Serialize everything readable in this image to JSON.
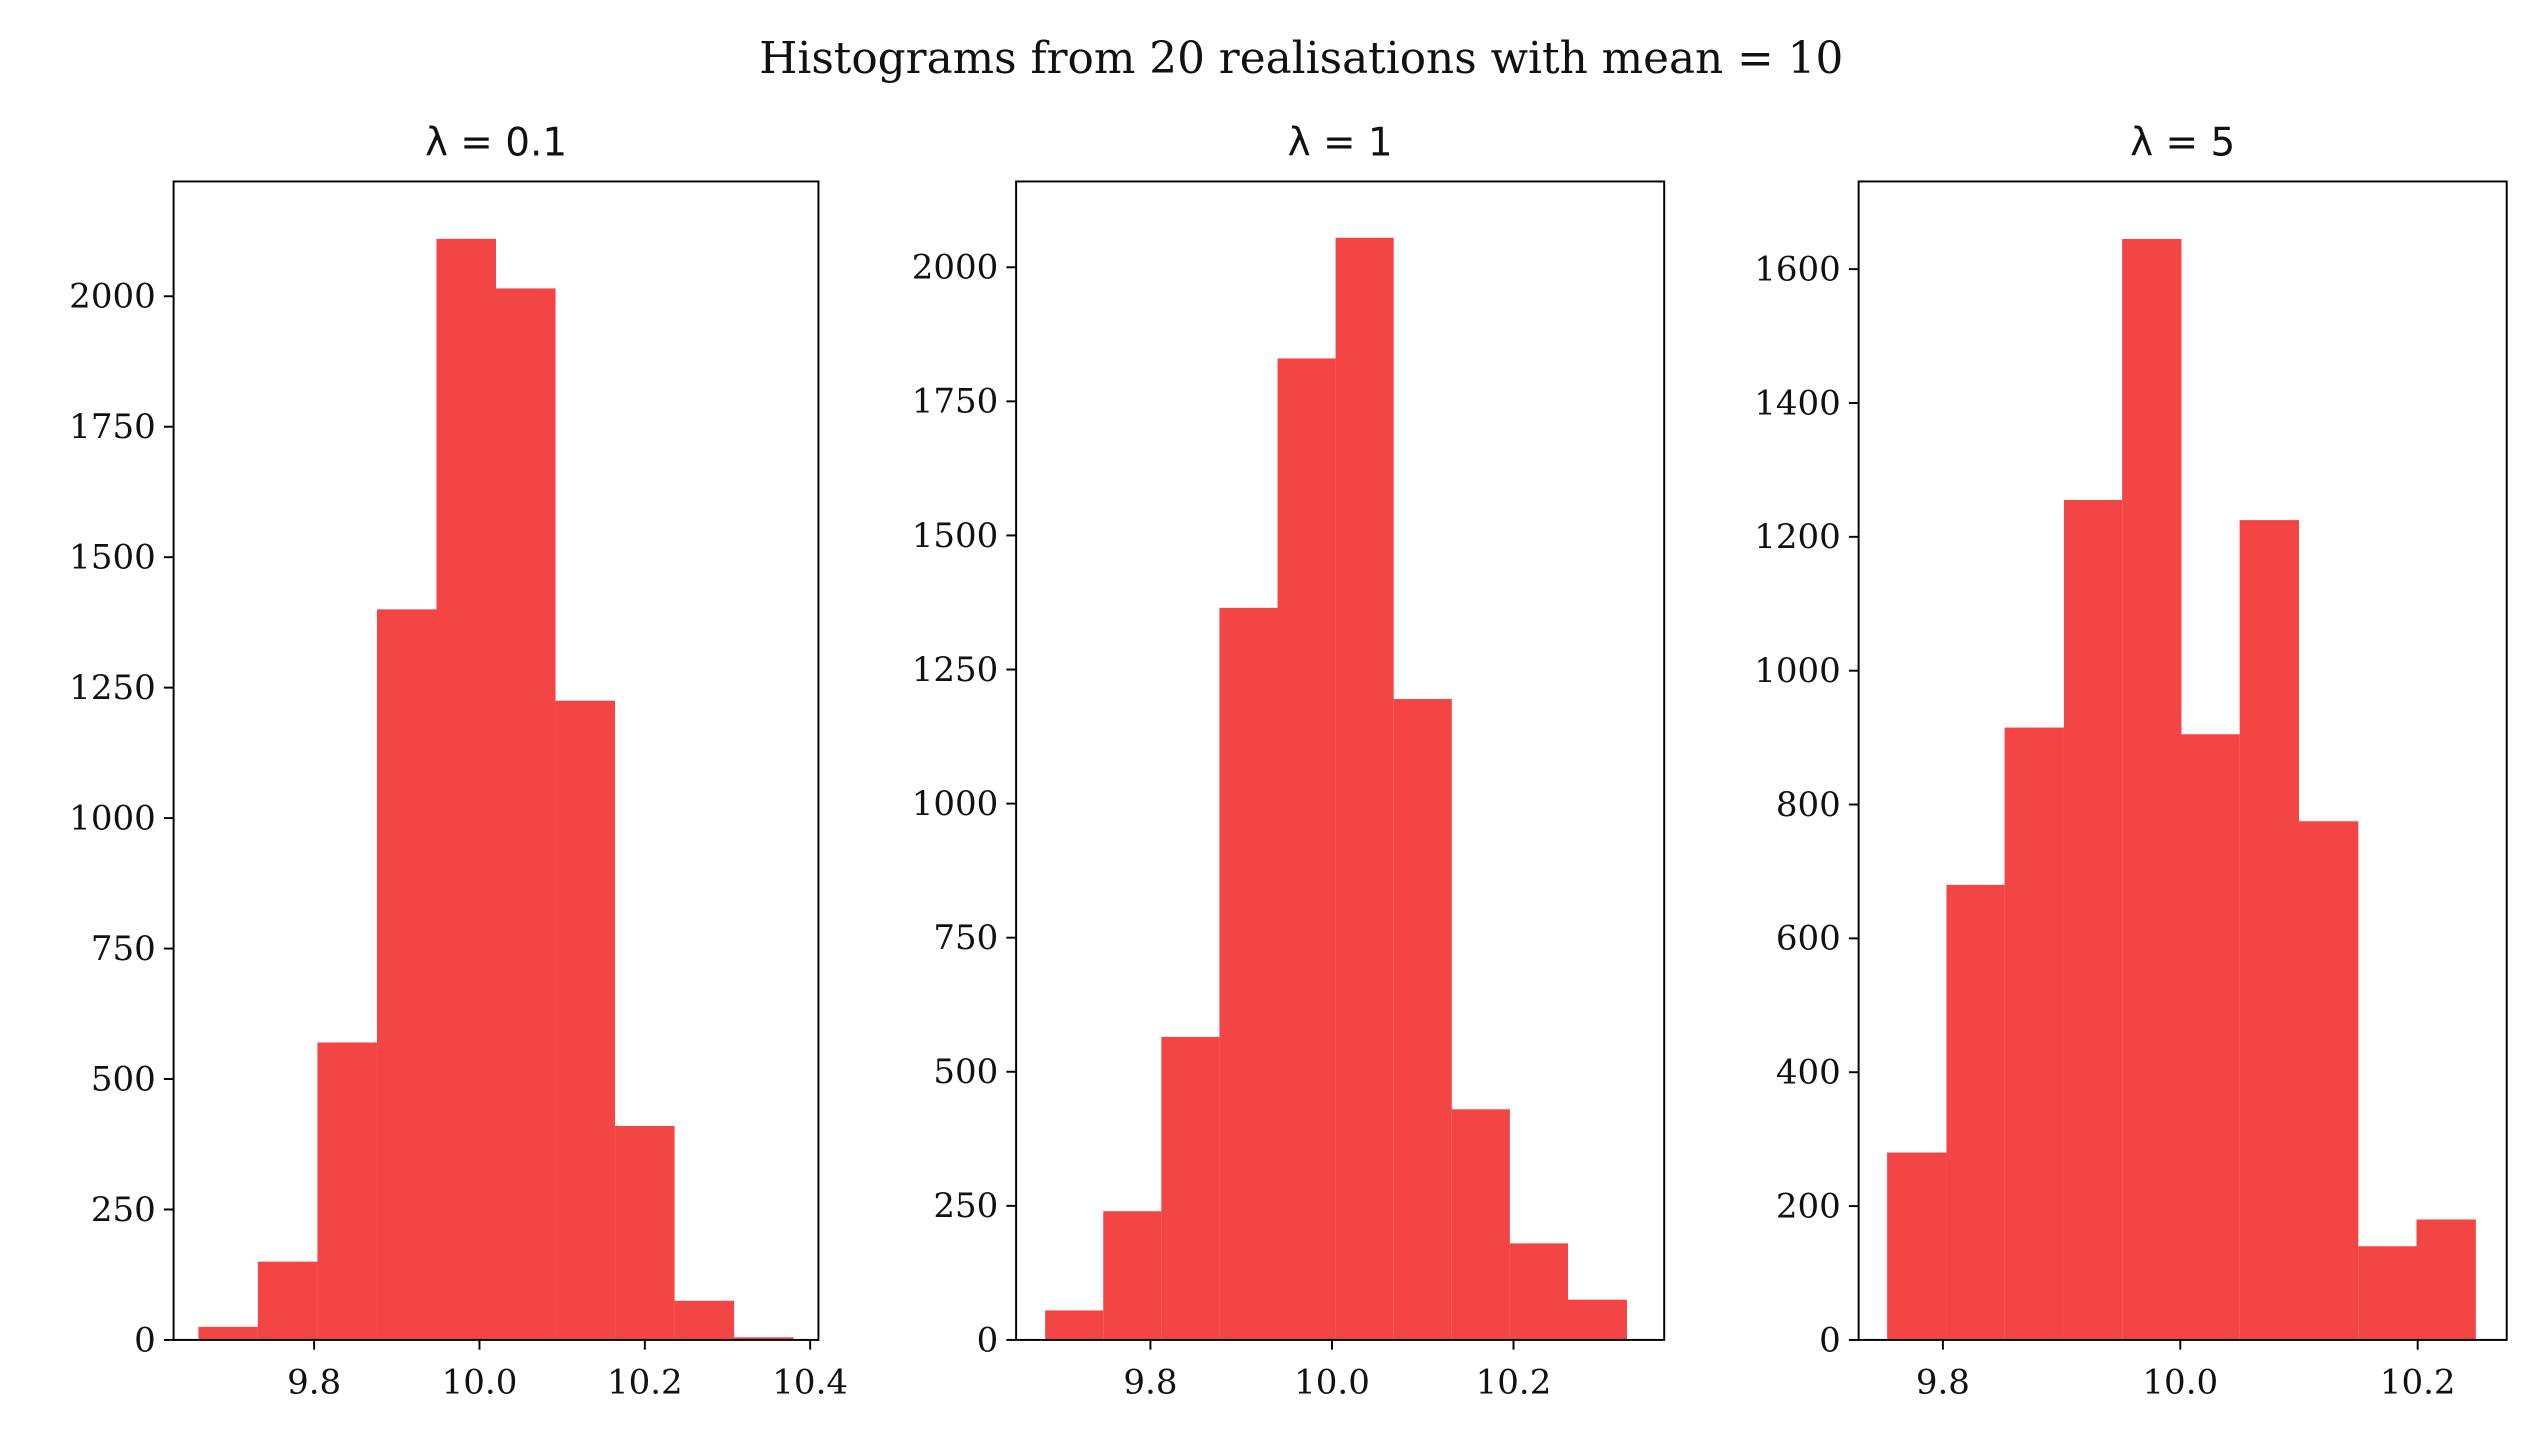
{
  "chart_data": [
    {
      "type": "histogram",
      "suptitle": "Histograms from 20 realisations with mean = 10",
      "title": "λ = 0.1",
      "color": "#f44545",
      "bins": [
        9.66,
        9.732,
        9.804,
        9.876,
        9.948,
        10.02,
        10.092,
        10.164,
        10.236,
        10.308,
        10.38
      ],
      "values": [
        25,
        150,
        570,
        1400,
        2110,
        2015,
        1225,
        410,
        75,
        5
      ],
      "xlim": [
        9.63,
        10.41
      ],
      "xticks": [
        9.8,
        {
          "value": 10.0,
          "label": "10.0"
        },
        10.2,
        10.4
      ],
      "ylim": [
        0,
        2220
      ],
      "yticks": [
        0,
        250,
        500,
        750,
        1000,
        1250,
        1500,
        1750,
        2000
      ]
    },
    {
      "type": "histogram",
      "title": "λ = 1",
      "color": "#f44545",
      "bins": [
        9.684,
        9.748,
        9.812,
        9.876,
        9.94,
        10.004,
        10.068,
        10.132,
        10.196,
        10.26,
        10.325
      ],
      "values": [
        55,
        240,
        565,
        1365,
        1830,
        2055,
        1195,
        430,
        180,
        75
      ],
      "xlim": [
        9.652,
        10.366
      ],
      "xticks": [
        9.8,
        {
          "value": 10.0,
          "label": "10.0"
        },
        10.2
      ],
      "ylim": [
        0,
        2160
      ],
      "yticks": [
        0,
        250,
        500,
        750,
        1000,
        1250,
        1500,
        1750,
        2000
      ]
    },
    {
      "type": "histogram",
      "title": "λ = 5",
      "color": "#f44545",
      "bins": [
        9.753,
        9.803,
        9.852,
        9.902,
        9.951,
        10.001,
        10.05,
        10.1,
        10.15,
        10.199,
        10.249
      ],
      "values": [
        280,
        680,
        915,
        1255,
        1645,
        905,
        1225,
        775,
        140,
        180
      ],
      "xlim": [
        9.729,
        10.275
      ],
      "xticks": [
        9.8,
        {
          "value": 10.0,
          "label": "10.0"
        },
        10.2
      ],
      "ylim": [
        0,
        1731
      ],
      "yticks": [
        0,
        200,
        400,
        600,
        800,
        1000,
        1200,
        1400,
        1600
      ]
    }
  ]
}
